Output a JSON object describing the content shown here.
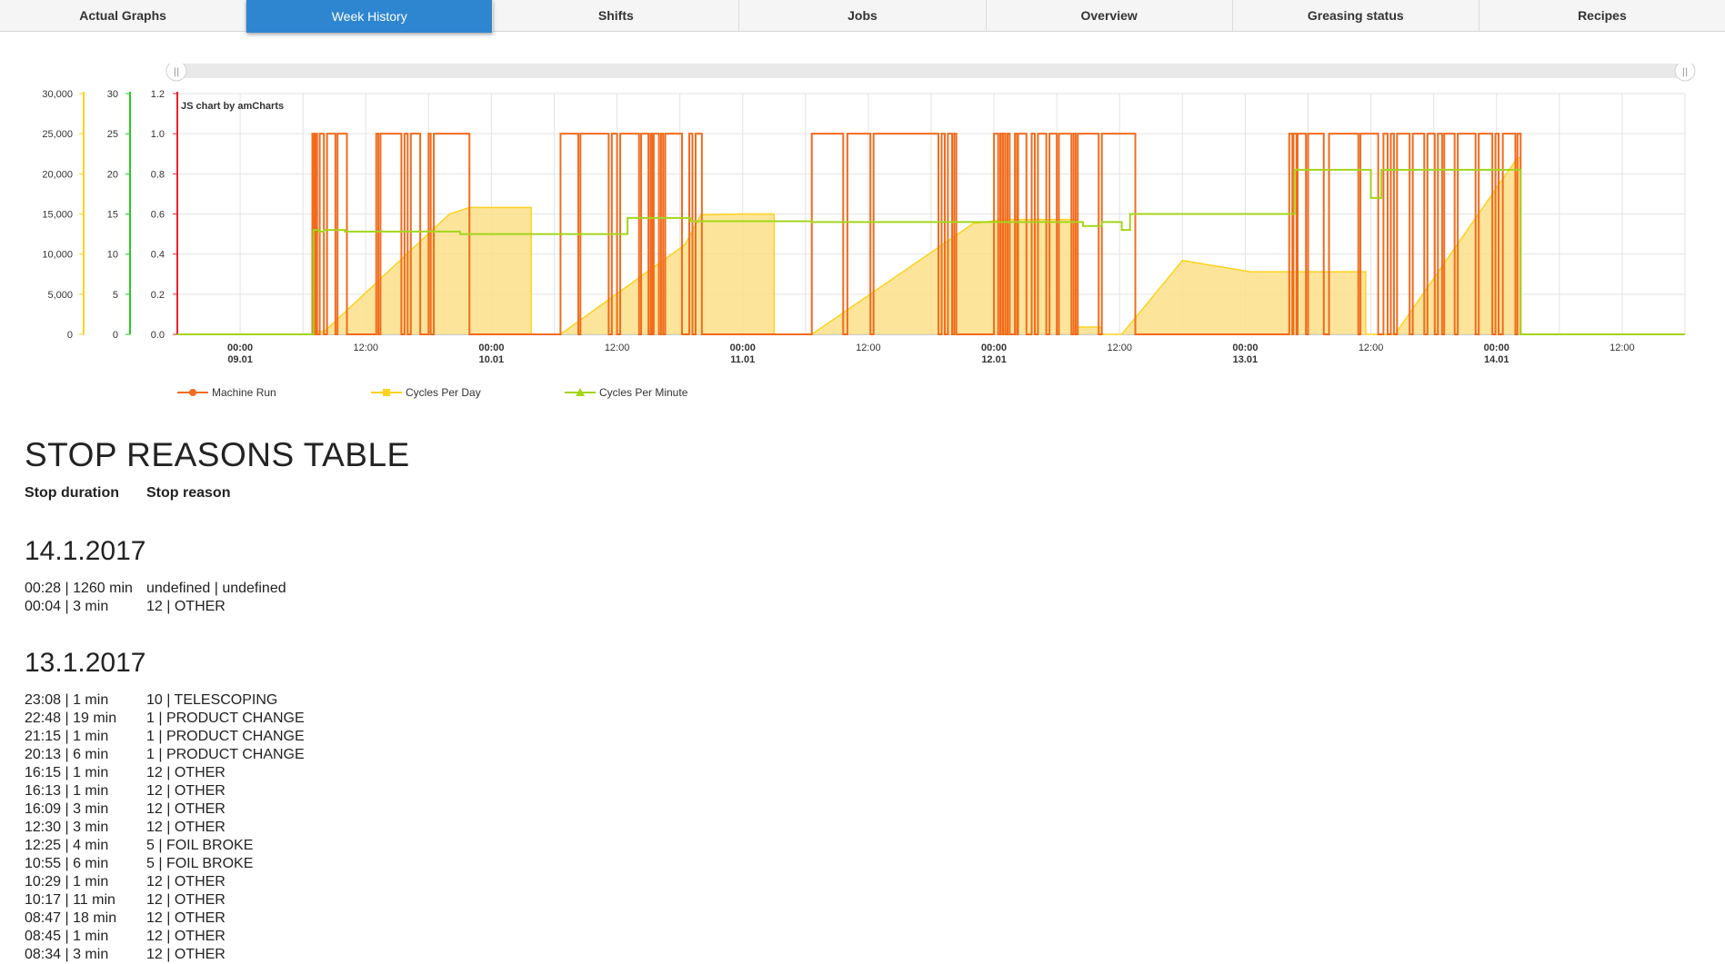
{
  "tabs": [
    {
      "label": "Actual Graphs",
      "active": false
    },
    {
      "label": "Week History",
      "active": true
    },
    {
      "label": "Shifts",
      "active": false
    },
    {
      "label": "Jobs",
      "active": false
    },
    {
      "label": "Overview",
      "active": false
    },
    {
      "label": "Greasing status",
      "active": false
    },
    {
      "label": "Recipes",
      "active": false
    }
  ],
  "chart": {
    "credit": "JS chart by amCharts",
    "scrollbar_grip": "||",
    "colors": {
      "machine_run": "#f26b1d",
      "cycles_per_day": "#ffd21f",
      "cycles_per_minute": "#a4d51b",
      "area_fill": "#fbe18a"
    }
  },
  "chart_data": {
    "type": "line",
    "x_tick_labels": [
      {
        "time": "00:00",
        "date": "09.01"
      },
      {
        "time": "12:00",
        "date": ""
      },
      {
        "time": "00:00",
        "date": "10.01"
      },
      {
        "time": "12:00",
        "date": ""
      },
      {
        "time": "00:00",
        "date": "11.01"
      },
      {
        "time": "12:00",
        "date": ""
      },
      {
        "time": "00:00",
        "date": "12.01"
      },
      {
        "time": "12:00",
        "date": ""
      },
      {
        "time": "00:00",
        "date": "13.01"
      },
      {
        "time": "12:00",
        "date": ""
      },
      {
        "time": "00:00",
        "date": "14.01"
      },
      {
        "time": "12:00",
        "date": ""
      }
    ],
    "xlim_hours": [
      -6,
      138
    ],
    "y_axes": [
      {
        "name": "Cycles Per Day",
        "ticks": [
          "30,000",
          "25,000",
          "20,000",
          "15,000",
          "10,000",
          "5,000",
          "0"
        ],
        "ylim": [
          0,
          30000
        ],
        "color": "#ffd21f"
      },
      {
        "name": "Cycles Per Minute",
        "ticks": [
          "30",
          "25",
          "20",
          "15",
          "10",
          "5",
          "0"
        ],
        "ylim": [
          0,
          30
        ],
        "color": "#22cc22"
      },
      {
        "name": "Machine Run",
        "ticks": [
          "1.2",
          "1.0",
          "0.8",
          "0.6",
          "0.4",
          "0.2",
          "0.0"
        ],
        "ylim": [
          0,
          1.2
        ],
        "color": "#e8202a"
      }
    ],
    "grid": true,
    "legend_position": "bottom-left",
    "series": [
      {
        "name": "Machine Run",
        "on_intervals_hours": [
          [
            6.9,
            7.05
          ],
          [
            7.2,
            7.35
          ],
          [
            7.6,
            8.0
          ],
          [
            8.3,
            9.1
          ],
          [
            9.3,
            10.2
          ],
          [
            13.0,
            13.2
          ],
          [
            13.4,
            15.4
          ],
          [
            15.7,
            16.0
          ],
          [
            16.3,
            17.2
          ],
          [
            18.0,
            18.2
          ],
          [
            18.5,
            21.9
          ],
          [
            30.6,
            32.3
          ],
          [
            32.5,
            35.2
          ],
          [
            35.5,
            36.0
          ],
          [
            36.3,
            38.1
          ],
          [
            38.3,
            39.0
          ],
          [
            39.2,
            39.35
          ],
          [
            39.5,
            40.0
          ],
          [
            40.2,
            40.4
          ],
          [
            40.6,
            42.2
          ],
          [
            42.9,
            43.2
          ],
          [
            43.5,
            44.1
          ],
          [
            54.6,
            57.6
          ],
          [
            58.0,
            60.2
          ],
          [
            60.5,
            66.7
          ],
          [
            67.0,
            67.3
          ],
          [
            67.6,
            68.0
          ],
          [
            68.2,
            68.4
          ],
          [
            72.0,
            72.4
          ],
          [
            72.6,
            72.8
          ],
          [
            72.9,
            73.1
          ],
          [
            73.3,
            73.5
          ],
          [
            74.0,
            74.2
          ],
          [
            74.3,
            75.1
          ],
          [
            75.6,
            75.9
          ],
          [
            76.2,
            77.0
          ],
          [
            77.3,
            78.0
          ],
          [
            78.2,
            79.4
          ],
          [
            79.6,
            79.8
          ],
          [
            80.0,
            82.0
          ],
          [
            82.3,
            85.5
          ],
          [
            100.2,
            100.5
          ],
          [
            100.6,
            100.9
          ],
          [
            101.0,
            101.8
          ],
          [
            102.0,
            103.5
          ],
          [
            104.0,
            106.8
          ],
          [
            107.0,
            108.7
          ],
          [
            109.2,
            109.6
          ],
          [
            109.9,
            110.2
          ],
          [
            110.5,
            111.7
          ],
          [
            112.0,
            113.1
          ],
          [
            113.4,
            114.1
          ],
          [
            114.4,
            114.8
          ],
          [
            115.0,
            116.0
          ],
          [
            116.3,
            118.0
          ],
          [
            118.3,
            119.6
          ],
          [
            119.9,
            120.2
          ],
          [
            120.6,
            121.8
          ],
          [
            122.0,
            122.3
          ]
        ]
      },
      {
        "name": "Cycles Per Day",
        "points": [
          [
            -6,
            0
          ],
          [
            6.9,
            0
          ],
          [
            6.9,
            500
          ],
          [
            8.0,
            300
          ],
          [
            20.0,
            15000
          ],
          [
            21.9,
            15800
          ],
          [
            27.8,
            15800
          ],
          [
            27.8,
            0
          ],
          [
            30.6,
            0
          ],
          [
            42.5,
            11200
          ],
          [
            44.0,
            14900
          ],
          [
            48.0,
            15000
          ],
          [
            51.0,
            15000
          ],
          [
            51.0,
            0
          ],
          [
            54.6,
            0
          ],
          [
            70.0,
            13800
          ],
          [
            73.0,
            14300
          ],
          [
            80.0,
            14300
          ],
          [
            80.0,
            900
          ],
          [
            82.3,
            900
          ],
          [
            82.3,
            0
          ],
          [
            84.2,
            0
          ],
          [
            90.0,
            9200
          ],
          [
            96.5,
            7800
          ],
          [
            107.5,
            7800
          ],
          [
            107.5,
            0
          ],
          [
            110.3,
            0
          ],
          [
            122.0,
            22000
          ],
          [
            122.3,
            22000
          ],
          [
            122.3,
            0
          ],
          [
            138,
            0
          ]
        ]
      },
      {
        "name": "Cycles Per Minute",
        "points": [
          [
            -6,
            0
          ],
          [
            6.9,
            0
          ],
          [
            7.0,
            13
          ],
          [
            7.5,
            12.8
          ],
          [
            8.0,
            13
          ],
          [
            10.0,
            12.8
          ],
          [
            18.0,
            12.8
          ],
          [
            21.0,
            12.5
          ],
          [
            26.0,
            12.5
          ],
          [
            30.6,
            12.5
          ],
          [
            36.7,
            12.5
          ],
          [
            37.0,
            14.5
          ],
          [
            42.0,
            14.5
          ],
          [
            43.0,
            14.1
          ],
          [
            54.6,
            14
          ],
          [
            65.0,
            14
          ],
          [
            68.0,
            14
          ],
          [
            75.0,
            14
          ],
          [
            80.0,
            14
          ],
          [
            80.5,
            13.5
          ],
          [
            82.3,
            14
          ],
          [
            84.2,
            13
          ],
          [
            85.0,
            15
          ],
          [
            96.5,
            15
          ],
          [
            100.5,
            15
          ],
          [
            100.7,
            20.5
          ],
          [
            107.5,
            20.5
          ],
          [
            108.0,
            17
          ],
          [
            109.0,
            20.5
          ],
          [
            122.3,
            20.5
          ],
          [
            122.3,
            0
          ],
          [
            138,
            0
          ]
        ]
      }
    ]
  },
  "legend": [
    {
      "name": "Machine Run",
      "color": "#f26b1d",
      "marker": "circle"
    },
    {
      "name": "Cycles Per Day",
      "color": "#ffd21f",
      "marker": "square"
    },
    {
      "name": "Cycles Per Minute",
      "color": "#a4d51b",
      "marker": "triangle"
    }
  ],
  "stop_table": {
    "title": "STOP REASONS TABLE",
    "header_duration": "Stop duration",
    "header_reason": "Stop reason",
    "days": [
      {
        "date": "14.1.2017",
        "rows": [
          {
            "duration": "00:28 | 1260 min",
            "reason": "undefined | undefined"
          },
          {
            "duration": "00:04 | 3 min",
            "reason": "12 | OTHER"
          }
        ]
      },
      {
        "date": "13.1.2017",
        "rows": [
          {
            "duration": "23:08 | 1 min",
            "reason": "10 | TELESCOPING"
          },
          {
            "duration": "22:48 | 19 min",
            "reason": "1 | PRODUCT CHANGE"
          },
          {
            "duration": "21:15 | 1 min",
            "reason": "1 | PRODUCT CHANGE"
          },
          {
            "duration": "20:13 | 6 min",
            "reason": "1 | PRODUCT CHANGE"
          },
          {
            "duration": "16:15 | 1 min",
            "reason": "12 | OTHER"
          },
          {
            "duration": "16:13 | 1 min",
            "reason": "12 | OTHER"
          },
          {
            "duration": "16:09 | 3 min",
            "reason": "12 | OTHER"
          },
          {
            "duration": "12:30 | 3 min",
            "reason": "12 | OTHER"
          },
          {
            "duration": "12:25 | 4 min",
            "reason": "5 | FOIL BROKE"
          },
          {
            "duration": "10:55 | 6 min",
            "reason": "5 | FOIL BROKE"
          },
          {
            "duration": "10:29 | 1 min",
            "reason": "12 | OTHER"
          },
          {
            "duration": "10:17 | 11 min",
            "reason": "12 | OTHER"
          },
          {
            "duration": "08:47 | 18 min",
            "reason": "12 | OTHER"
          },
          {
            "duration": "08:45 | 1 min",
            "reason": "12 | OTHER"
          },
          {
            "duration": "08:34 | 3 min",
            "reason": "12 | OTHER"
          }
        ]
      }
    ]
  }
}
